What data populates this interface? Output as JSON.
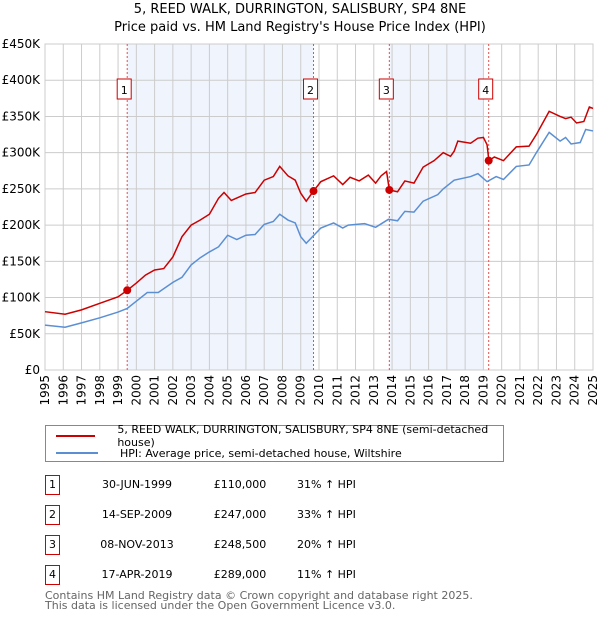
{
  "chart_data": {
    "type": "line",
    "title": "5, REED WALK, DURRINGTON, SALISBURY, SP4 8NE",
    "subtitle": "Price paid vs. HM Land Registry's House Price Index (HPI)",
    "xlim": [
      1995,
      2025
    ],
    "ylim": [
      0,
      450000
    ],
    "yticks": [
      0,
      50000,
      100000,
      150000,
      200000,
      250000,
      300000,
      350000,
      400000,
      450000
    ],
    "ytick_labels": [
      "£0",
      "£50K",
      "£100K",
      "£150K",
      "£200K",
      "£250K",
      "£300K",
      "£350K",
      "£400K",
      "£450K"
    ],
    "xticks": [
      1995,
      1996,
      1997,
      1998,
      1999,
      2000,
      2001,
      2002,
      2003,
      2004,
      2005,
      2006,
      2007,
      2008,
      2009,
      2010,
      2011,
      2012,
      2013,
      2014,
      2015,
      2016,
      2017,
      2018,
      2019,
      2020,
      2021,
      2022,
      2023,
      2024,
      2025
    ],
    "grid": true,
    "series": [
      {
        "name": "5, REED WALK, DURRINGTON, SALISBURY, SP4 8NE (semi-detached house)",
        "color": "#cc0000",
        "x": [
          1995,
          1996.1,
          1997,
          1998,
          1999,
          1999.5,
          2000,
          2000.5,
          2001,
          2001.5,
          2002,
          2002.5,
          2003,
          2003.5,
          2004,
          2004.5,
          2004.8,
          2005.2,
          2006,
          2006.5,
          2007,
          2007.5,
          2007.85,
          2008.3,
          2008.7,
          2009,
          2009.3,
          2009.7,
          2010.1,
          2010.8,
          2011.3,
          2011.7,
          2012.2,
          2012.7,
          2013.1,
          2013.4,
          2013.7,
          2013.85,
          2014.3,
          2014.7,
          2015.2,
          2015.7,
          2016.3,
          2016.8,
          2017.2,
          2017.4,
          2017.6,
          2018.3,
          2018.7,
          2019.0,
          2019.2,
          2019.3,
          2019.6,
          2020.1,
          2020.8,
          2021.5,
          2021.9,
          2022.6,
          2023.2,
          2023.5,
          2023.8,
          2024.1,
          2024.5,
          2024.8,
          2025
        ],
        "y": [
          80500,
          77000,
          83000,
          92000,
          101000,
          110000,
          120000,
          131000,
          138000,
          140000,
          156000,
          184000,
          200000,
          207000,
          215000,
          237000,
          245000,
          234000,
          243000,
          245000,
          262000,
          267000,
          281000,
          268000,
          262000,
          244000,
          233000,
          247000,
          260000,
          268000,
          256000,
          266000,
          261000,
          269000,
          258000,
          268000,
          274000,
          248500,
          246000,
          261000,
          258000,
          280000,
          289000,
          300000,
          295000,
          302000,
          316000,
          313000,
          320000,
          321000,
          311000,
          289000,
          294000,
          289000,
          308000,
          309000,
          325000,
          357000,
          350000,
          347000,
          349000,
          341000,
          343000,
          363000,
          361000
        ]
      },
      {
        "name": "HPI: Average price, semi-detached house, Wiltshire",
        "color": "#5b8fd4",
        "x": [
          1995,
          1996.1,
          1997,
          1998,
          1999,
          1999.5,
          2000,
          2000.6,
          2001.2,
          2002,
          2002.5,
          2003,
          2003.5,
          2004,
          2004.5,
          2005,
          2005.5,
          2006,
          2006.5,
          2007,
          2007.5,
          2007.85,
          2008.3,
          2008.7,
          2009,
          2009.3,
          2010.1,
          2010.8,
          2011.3,
          2011.6,
          2012.5,
          2013.1,
          2013.8,
          2014.3,
          2014.7,
          2015.2,
          2015.7,
          2016.5,
          2016.8,
          2017.4,
          2018.3,
          2018.7,
          2019.2,
          2019.7,
          2020.1,
          2020.8,
          2021.5,
          2021.9,
          2022.6,
          2023.2,
          2023.5,
          2023.8,
          2024.3,
          2024.6,
          2025
        ],
        "y": [
          62000,
          59000,
          65000,
          72000,
          80000,
          85000,
          95000,
          107000,
          107000,
          121000,
          128000,
          145000,
          155000,
          163000,
          170000,
          186000,
          180000,
          186000,
          187000,
          201000,
          205000,
          215000,
          207000,
          203000,
          184000,
          175000,
          196000,
          203000,
          196000,
          200000,
          202000,
          197000,
          208000,
          206000,
          219000,
          218000,
          233000,
          242000,
          250000,
          262000,
          267000,
          271000,
          260000,
          267000,
          263000,
          281000,
          283000,
          300000,
          328000,
          316000,
          321000,
          312000,
          314000,
          332000,
          330000
        ]
      }
    ],
    "sales": [
      {
        "label": "1",
        "x": 1999.5,
        "y": 110000
      },
      {
        "label": "2",
        "x": 2009.7,
        "y": 247000
      },
      {
        "label": "3",
        "x": 2013.85,
        "y": 248500
      },
      {
        "label": "4",
        "x": 2019.29,
        "y": 289000
      }
    ],
    "shaded": [
      [
        1999.5,
        2009.7
      ],
      [
        2013.85,
        2019.0
      ]
    ]
  },
  "legend": {
    "red": "5, REED WALK, DURRINGTON, SALISBURY, SP4 8NE (semi-detached house)",
    "blue": "HPI: Average price, semi-detached house, Wiltshire"
  },
  "table": [
    {
      "num": "1",
      "date": "30-JUN-1999",
      "price": "£110,000",
      "hpi": "31% ↑ HPI"
    },
    {
      "num": "2",
      "date": "14-SEP-2009",
      "price": "£247,000",
      "hpi": "33% ↑ HPI"
    },
    {
      "num": "3",
      "date": "08-NOV-2013",
      "price": "£248,500",
      "hpi": "20% ↑ HPI"
    },
    {
      "num": "4",
      "date": "17-APR-2019",
      "price": "£289,000",
      "hpi": "11% ↑ HPI"
    }
  ],
  "footer": {
    "line1": "Contains HM Land Registry data © Crown copyright and database right 2025.",
    "line2": "This data is licensed under the Open Government Licence v3.0."
  }
}
